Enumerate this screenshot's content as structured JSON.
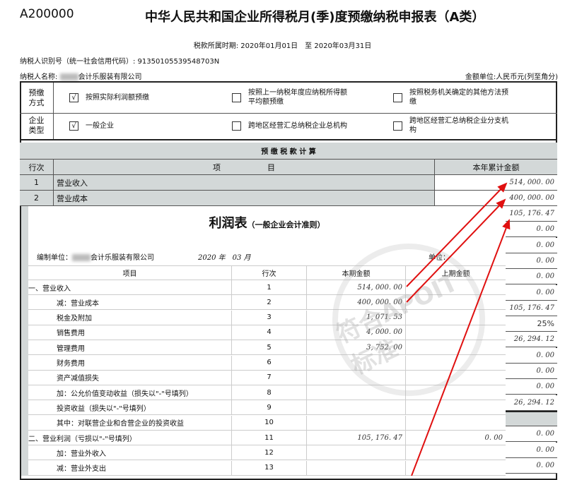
{
  "header": {
    "code": "A200000",
    "title": "中华人民共和国企业所得税月(季)度预缴纳税申报表（A类）",
    "period": "税款所属时期: 2020年01月01日　至 2020年03月31日",
    "taxid": "纳税人识别号（统一社会信用代码）: 91350105539548703N",
    "name_label": "纳税人名称:",
    "name_value": "会计乐服装有限公司",
    "unit": "金额单位:人民币元(列至角分)"
  },
  "options": [
    {
      "label": "预缴方式",
      "items": [
        {
          "text": "按照实际利润额预缴",
          "checked": true
        },
        {
          "text": "按照上一纳税年度应纳税所得额平均额预缴",
          "checked": false
        },
        {
          "text": "按照税务机关确定的其他方法预缴",
          "checked": false
        }
      ]
    },
    {
      "label": "企业类型",
      "items": [
        {
          "text": "一般企业",
          "checked": true
        },
        {
          "text": "跨地区经营汇总纳税企业总机构",
          "checked": false
        },
        {
          "text": "跨地区经营汇总纳税企业分支机构",
          "checked": false
        }
      ]
    }
  ],
  "calc": {
    "title": "预 缴 税 款 计 算",
    "col_no": "行次",
    "col_item": "项　　　　　　目",
    "col_amount": "本年累计金额",
    "rows": [
      {
        "no": "1",
        "item": "营业收入",
        "amount": "514, 000. 00"
      },
      {
        "no": "2",
        "item": "营业成本",
        "amount": "400, 000. 00"
      }
    ],
    "right_values": [
      "105, 176. 47",
      "0. 00",
      "0. 00",
      "0. 00",
      "0. 00",
      "0. 00",
      "105, 176. 47",
      "25%",
      "26, 294. 12",
      "0. 00",
      "0. 00",
      "0. 00",
      "26, 294. 12",
      "",
      "0. 00",
      "0. 00",
      "0. 00"
    ]
  },
  "profit": {
    "title": "利润表",
    "subtitle": "（一般企业会计准则）",
    "unit_label": "编制单位：",
    "unit_value": "会计乐服装有限公司",
    "year": "2020 年",
    "month": "03 月",
    "currency": "单位：",
    "headers": [
      "项目",
      "行次",
      "本期金额",
      "上期金额"
    ],
    "rows": [
      {
        "item": "一、营业收入",
        "no": "1",
        "cur": "514, 000. 00",
        "prev": "",
        "indent": false
      },
      {
        "item": "减：营业成本",
        "no": "2",
        "cur": "400, 000. 00",
        "prev": "",
        "indent": true
      },
      {
        "item": "税金及附加",
        "no": "3",
        "cur": "1, 071. 53",
        "prev": "",
        "indent": true
      },
      {
        "item": "销售费用",
        "no": "4",
        "cur": "4, 000. 00",
        "prev": "",
        "indent": true
      },
      {
        "item": "管理费用",
        "no": "5",
        "cur": "3, 752. 00",
        "prev": "",
        "indent": true
      },
      {
        "item": "财务费用",
        "no": "6",
        "cur": "",
        "prev": "",
        "indent": true
      },
      {
        "item": "资产减值损失",
        "no": "7",
        "cur": "",
        "prev": "",
        "indent": true
      },
      {
        "item": "加：公允价值变动收益（损失以\"-\"号填列）",
        "no": "8",
        "cur": "",
        "prev": "",
        "indent": true
      },
      {
        "item": "投资收益（损失以\"-\"号填列）",
        "no": "9",
        "cur": "",
        "prev": "",
        "indent": true
      },
      {
        "item": "其中：对联营企业和合营企业的投资收益",
        "no": "10",
        "cur": "",
        "prev": "",
        "indent": true
      },
      {
        "item": "二、营业利润（亏损以\"-\"号填列）",
        "no": "11",
        "cur": "105, 176. 47",
        "prev": "0. 00",
        "indent": false
      },
      {
        "item": "加：营业外收入",
        "no": "12",
        "cur": "",
        "prev": "",
        "indent": true
      },
      {
        "item": "减：营业外支出",
        "no": "13",
        "cur": "",
        "prev": "",
        "indent": true
      }
    ]
  },
  "watermark": "符合APOIT标准",
  "colors": {
    "arrow": "#e01010",
    "grey": "#d3d8d8"
  }
}
